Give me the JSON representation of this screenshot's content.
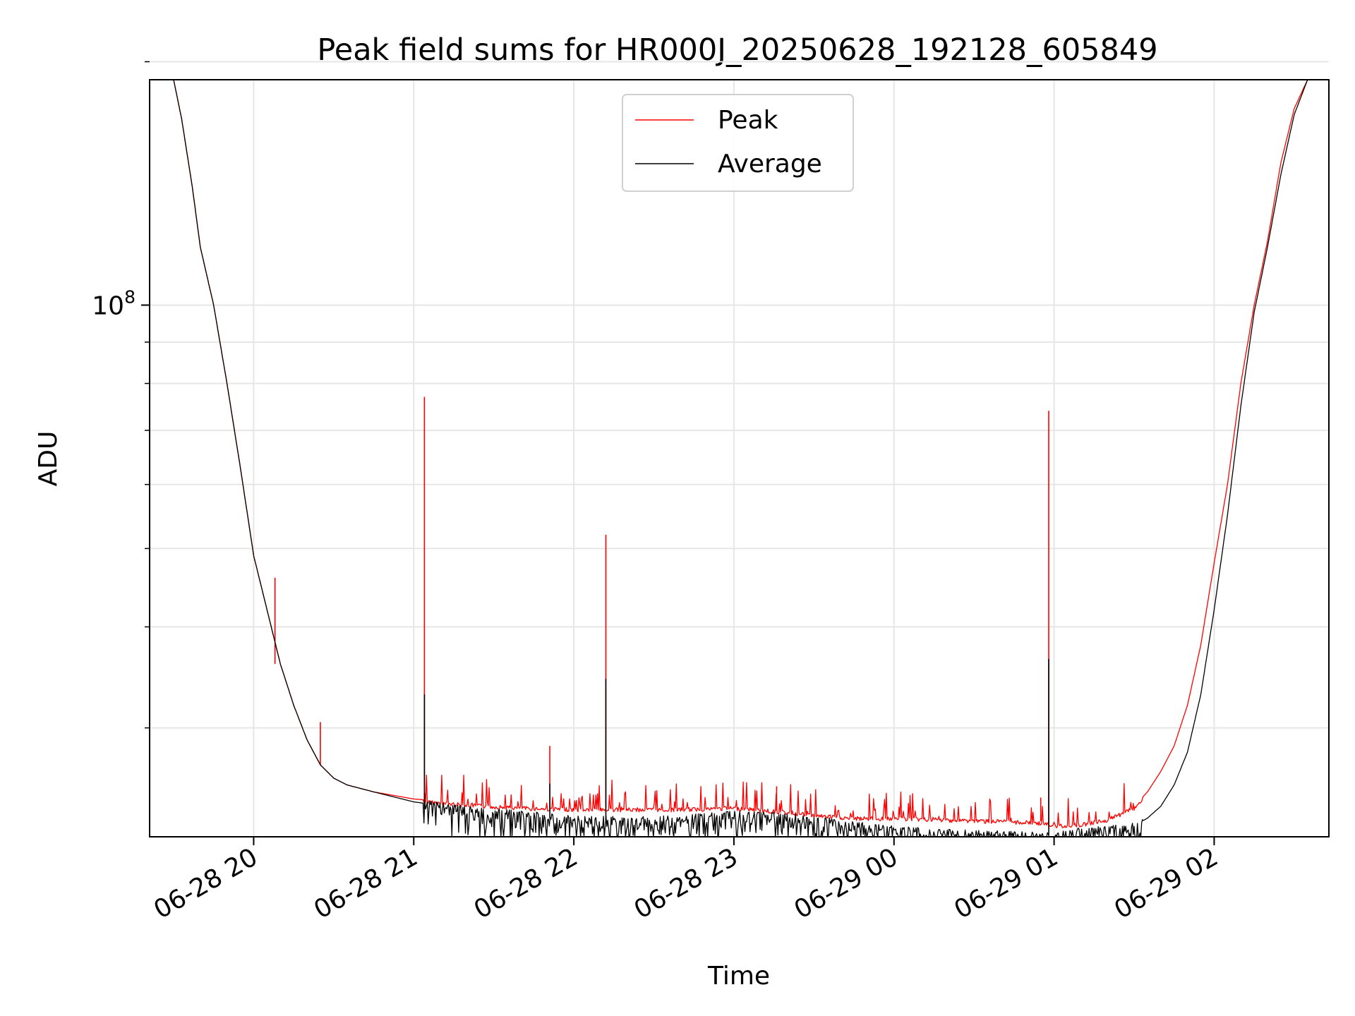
{
  "chart_data": {
    "type": "line",
    "title": "Peak field sums for HR000J_20250628_192128_605849",
    "xlabel": "Time",
    "ylabel": "ADU",
    "yscale": "log",
    "grid": true,
    "legend_position": "upper center",
    "xlim": [
      "06-28 19:21",
      "06-29 02:43"
    ],
    "ylim": [
      22000000,
      190000000
    ],
    "x_ticks": [
      "06-28 20",
      "06-28 21",
      "06-28 22",
      "06-28 23",
      "06-29 00",
      "06-29 01",
      "06-29 02"
    ],
    "y_tick_label": {
      "base": "10",
      "exponent": "8",
      "value": 100000000
    },
    "y_minor_ticks": [
      30000000,
      40000000,
      50000000,
      60000000,
      70000000,
      80000000,
      90000000,
      200000000
    ],
    "x": [
      "06-28 19:21",
      "06-28 19:25",
      "06-28 19:30",
      "06-28 19:33",
      "06-28 19:37",
      "06-28 19:40",
      "06-28 19:45",
      "06-28 19:50",
      "06-28 19:55",
      "06-28 20:00",
      "06-28 20:05",
      "06-28 20:10",
      "06-28 20:15",
      "06-28 20:20",
      "06-28 20:25",
      "06-28 20:30",
      "06-28 20:35",
      "06-28 20:45",
      "06-28 21:00",
      "06-28 21:20",
      "06-28 21:40",
      "06-28 22:00",
      "06-28 22:20",
      "06-28 22:40",
      "06-28 23:00",
      "06-28 23:20",
      "06-28 23:30",
      "06-28 23:45",
      "06-29 00:00",
      "06-29 00:20",
      "06-29 00:40",
      "06-29 00:55",
      "06-29 01:00",
      "06-29 01:10",
      "06-29 01:20",
      "06-29 01:30",
      "06-29 01:35",
      "06-29 01:40",
      "06-29 01:45",
      "06-29 01:50",
      "06-29 01:55",
      "06-29 02:00",
      "06-29 02:05",
      "06-29 02:10",
      "06-29 02:15",
      "06-29 02:20",
      "06-29 02:25",
      "06-29 02:30",
      "06-29 02:35",
      "06-29 02:43"
    ],
    "series": [
      {
        "name": "Peak",
        "color": "#ff0000",
        "values": [
          190000000,
          190000000,
          190000000,
          170000000,
          140000000,
          118000000,
          100000000,
          80000000,
          63000000,
          49000000,
          42000000,
          36000000,
          32000000,
          29000000,
          27000000,
          26000000,
          25500000,
          25000000,
          24500000,
          24200000,
          24000000,
          23900000,
          23900000,
          23900000,
          24000000,
          23700000,
          23500000,
          23300000,
          23300000,
          23200000,
          23100000,
          23000000,
          22800000,
          22900000,
          23200000,
          24000000,
          25000000,
          26500000,
          28500000,
          32000000,
          38000000,
          48000000,
          60000000,
          80000000,
          100000000,
          120000000,
          150000000,
          175000000,
          190000000,
          190000000
        ],
        "spikes": [
          {
            "x": "06-28 21:04",
            "y": 77000000
          },
          {
            "x": "06-28 22:12",
            "y": 52000000
          },
          {
            "x": "06-29 00:58",
            "y": 74000000
          },
          {
            "x": "06-28 21:51",
            "y": 28500000
          },
          {
            "x": "06-28 20:25",
            "y": 30500000
          },
          {
            "x": "06-28 23:16",
            "y": 25400000
          },
          {
            "x": "06-29 00:55",
            "y": 24600000
          },
          {
            "x": "06-28 20:08",
            "y": 46000000
          }
        ]
      },
      {
        "name": "Average",
        "color": "#000000",
        "values": [
          190000000,
          190000000,
          190000000,
          170000000,
          140000000,
          118000000,
          100000000,
          80000000,
          63000000,
          49000000,
          42000000,
          36000000,
          32000000,
          29000000,
          27000000,
          26000000,
          25500000,
          25000000,
          24300000,
          23800000,
          23500000,
          23200000,
          23100000,
          23200000,
          23500000,
          23400000,
          23200000,
          22800000,
          22500000,
          22300000,
          22200000,
          22100000,
          22100000,
          22400000,
          22500000,
          22700000,
          23200000,
          24000000,
          25500000,
          28000000,
          33000000,
          42000000,
          55000000,
          75000000,
          98000000,
          118000000,
          145000000,
          172000000,
          190000000,
          190000000
        ],
        "spikes": [
          {
            "x": "06-28 21:04",
            "y": 33000000
          },
          {
            "x": "06-28 22:12",
            "y": 34500000
          },
          {
            "x": "06-29 00:58",
            "y": 36500000
          },
          {
            "x": "06-28 21:51",
            "y": 25600000
          }
        ]
      }
    ]
  }
}
